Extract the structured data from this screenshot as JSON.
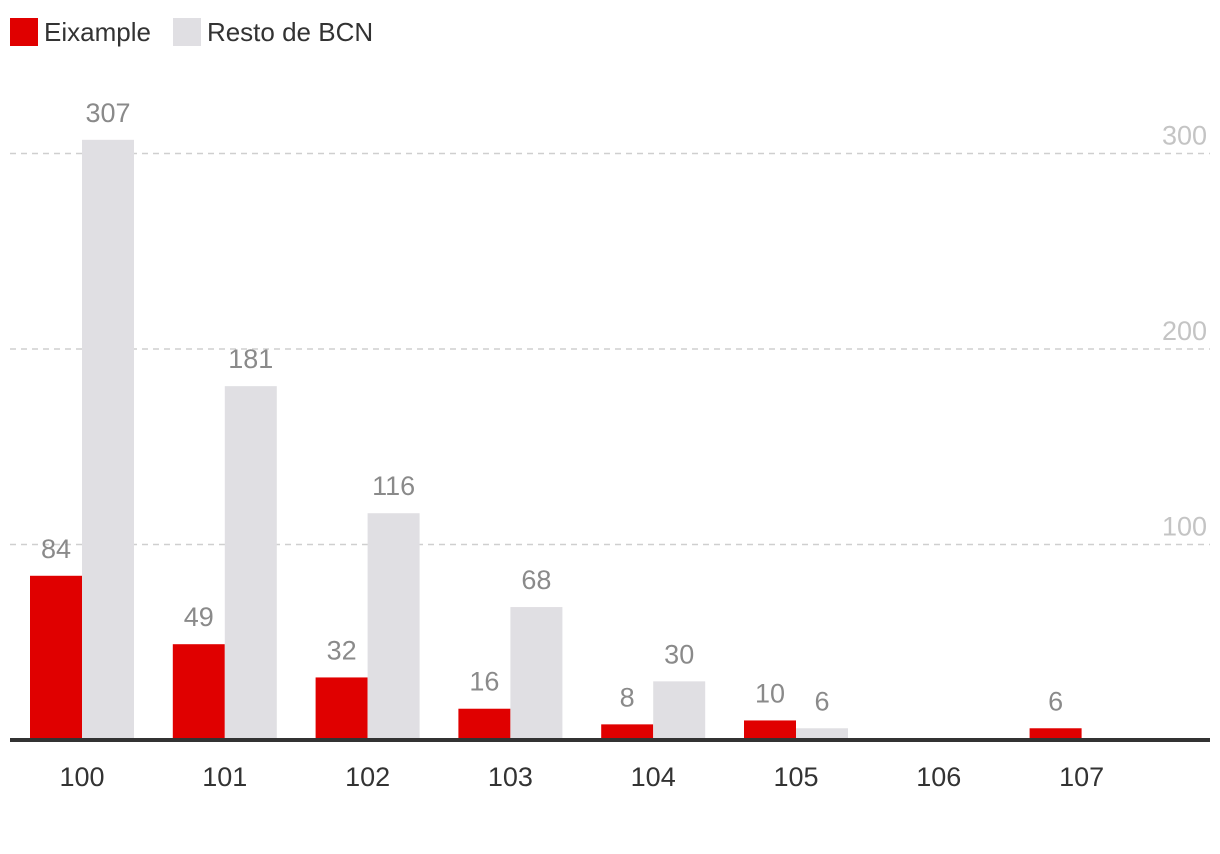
{
  "legend": [
    {
      "label": "Eixample",
      "color": "#e00000"
    },
    {
      "label": "Resto de BCN",
      "color": "#e0dfe3"
    }
  ],
  "chart_data": {
    "type": "bar",
    "categories": [
      "100",
      "101",
      "102",
      "103",
      "104",
      "105",
      "106",
      "107"
    ],
    "series": [
      {
        "name": "Eixample",
        "color": "#e00000",
        "values": [
          84,
          49,
          32,
          16,
          8,
          10,
          null,
          6
        ]
      },
      {
        "name": "Resto de BCN",
        "color": "#e0dfe3",
        "values": [
          307,
          181,
          116,
          68,
          30,
          6,
          null,
          null
        ]
      }
    ],
    "yticks": [
      "100",
      "200",
      "300"
    ],
    "ylim": [
      0,
      300
    ],
    "grid": true,
    "legend_position": "top-left",
    "xlabel": "",
    "ylabel": ""
  }
}
